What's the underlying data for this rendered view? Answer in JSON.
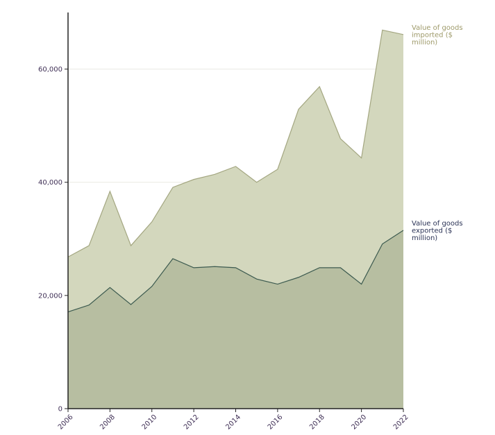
{
  "chart_data": {
    "type": "area",
    "x": [
      2006,
      2007,
      2008,
      2009,
      2010,
      2011,
      2012,
      2013,
      2014,
      2015,
      2016,
      2017,
      2018,
      2019,
      2020,
      2021,
      2022
    ],
    "x_tick_labels": [
      "2006",
      "2008",
      "2010",
      "2012",
      "2014",
      "2016",
      "2018",
      "2020",
      "2022"
    ],
    "y_tick_labels": [
      "0",
      "20,000",
      "40,000",
      "60,000"
    ],
    "y_ticks": [
      0,
      20000,
      40000,
      60000
    ],
    "xlim": [
      2006,
      2022
    ],
    "ylim": [
      0,
      70000
    ],
    "grid": true,
    "series": [
      {
        "name": "Value of goods imported ($ million)",
        "label_lines": [
          "Value of goods",
          "imported ($",
          "million)"
        ],
        "values": [
          26800,
          28800,
          38400,
          28800,
          33000,
          39100,
          40500,
          41400,
          42800,
          40000,
          42300,
          52900,
          56900,
          47700,
          44300,
          66900,
          66100
        ],
        "fill": "#d3d7bd",
        "line": "#a3a680",
        "label_color": "#9e9a6a"
      },
      {
        "name": "Value of goods exported ($ million)",
        "label_lines": [
          "Value of goods",
          "exported ($",
          "million)"
        ],
        "values": [
          17100,
          18300,
          21400,
          18400,
          21600,
          26500,
          24900,
          25100,
          24900,
          22900,
          22000,
          23200,
          24900,
          24900,
          22000,
          29100,
          31500
        ],
        "fill": "#b7bea1",
        "line": "#3c5a4f",
        "label_color": "#2b3356"
      }
    ],
    "colors": {
      "axis": "#222222",
      "tick_label": "#3f2f55",
      "grid": "#e9e9e2"
    }
  }
}
